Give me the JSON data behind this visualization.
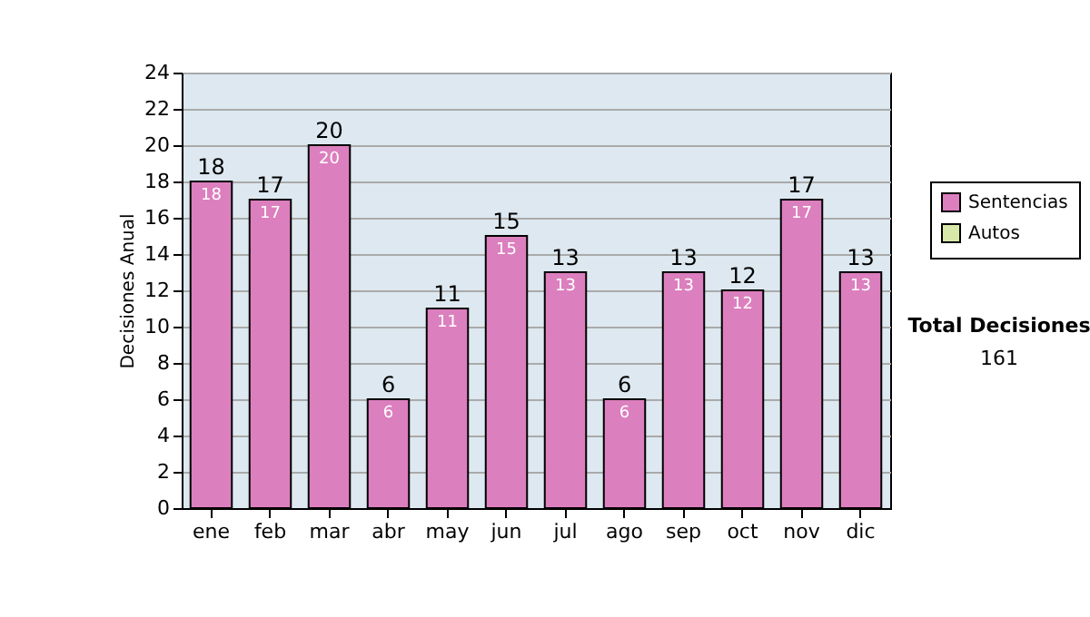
{
  "chart_data": {
    "type": "bar",
    "ylabel": "Decisiones Anual",
    "categories": [
      "ene",
      "feb",
      "mar",
      "abr",
      "may",
      "jun",
      "jul",
      "ago",
      "sep",
      "oct",
      "nov",
      "dic"
    ],
    "series": [
      {
        "name": "Sentencias",
        "color": "#dc7fbe",
        "values": [
          18,
          17,
          20,
          6,
          11,
          15,
          13,
          6,
          13,
          12,
          17,
          13
        ],
        "value_labels": [
          "18",
          "17",
          "20",
          "6",
          "11",
          "15",
          "13",
          "6",
          "13",
          "12",
          "17",
          "13"
        ]
      },
      {
        "name": "Autos",
        "color": "#d8e8a8",
        "values": [
          0,
          0,
          0,
          0,
          0,
          0,
          0,
          0,
          0,
          0,
          0,
          0
        ]
      }
    ],
    "stacked": true,
    "totals": [
      "18",
      "17",
      "20",
      "6",
      "11",
      "15",
      "13",
      "6",
      "13",
      "12",
      "17",
      "13"
    ],
    "ylim": [
      0,
      24
    ],
    "yticks": [
      0,
      2,
      4,
      6,
      8,
      10,
      12,
      14,
      16,
      18,
      20,
      22,
      24
    ],
    "grid": "y",
    "legend": "right",
    "annotations": [
      "Total Decisiones",
      "161"
    ]
  }
}
